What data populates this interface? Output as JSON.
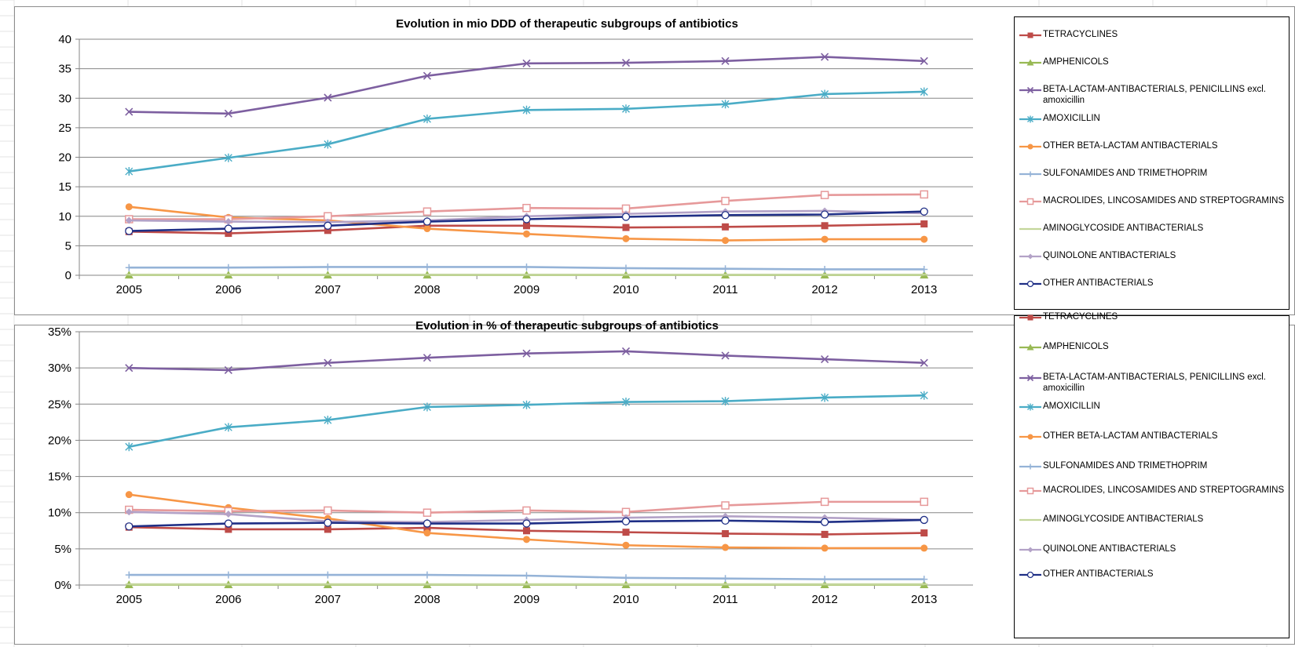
{
  "colors": {
    "TETRACYCLINES": "#be4b48",
    "AMPHENICOLS": "#98b954",
    "BETA_LACTAM": "#7d5fa0",
    "AMOXICILLIN": "#4aacc6",
    "OTHER_BETA_LACTAM": "#f79646",
    "SULFONAMIDES": "#95b3d7",
    "MACROLIDES": "#e6999a",
    "AMINOGLYCOSIDE": "#c3d69b",
    "QUINOLONE": "#b3a2c7",
    "OTHER": "#1f2f86"
  },
  "chart_data": [
    {
      "type": "line",
      "title": "Evolution in mio DDD of therapeutic subgroups of antibiotics",
      "x": [
        "2005",
        "2006",
        "2007",
        "2008",
        "2009",
        "2010",
        "2011",
        "2012",
        "2013"
      ],
      "ylim": [
        0,
        40
      ],
      "yticks": [
        "0",
        "5",
        "10",
        "15",
        "20",
        "25",
        "30",
        "35",
        "40"
      ],
      "ytick_values": [
        0,
        5,
        10,
        15,
        20,
        25,
        30,
        35,
        40
      ],
      "grid": true,
      "legend_position": "right",
      "series": [
        {
          "name": "TETRACYCLINES",
          "key": "TETRACYCLINES",
          "marker": "square",
          "values": [
            7.4,
            7.1,
            7.6,
            8.4,
            8.4,
            8.1,
            8.2,
            8.4,
            8.7
          ]
        },
        {
          "name": "AMPHENICOLS",
          "key": "AMPHENICOLS",
          "marker": "triangle",
          "values": [
            0.05,
            0.05,
            0.05,
            0.05,
            0.05,
            0.05,
            0.05,
            0.05,
            0.05
          ]
        },
        {
          "name": "BETA-LACTAM-ANTIBACTERIALS, PENICILLINS excl. amoxicillin",
          "key": "BETA_LACTAM",
          "marker": "x",
          "values": [
            27.7,
            27.4,
            30.1,
            33.8,
            35.9,
            36.0,
            36.3,
            37.0,
            36.3
          ]
        },
        {
          "name": "AMOXICILLIN",
          "key": "AMOXICILLIN",
          "marker": "star",
          "values": [
            17.6,
            19.9,
            22.2,
            26.5,
            28.0,
            28.2,
            29.0,
            30.7,
            31.1
          ]
        },
        {
          "name": "OTHER BETA-LACTAM ANTIBACTERIALS",
          "key": "OTHER_BETA_LACTAM",
          "marker": "circle",
          "values": [
            11.6,
            9.8,
            9.3,
            7.9,
            7.0,
            6.2,
            5.9,
            6.1,
            6.1
          ]
        },
        {
          "name": "SULFONAMIDES AND TRIMETHOPRIM",
          "key": "SULFONAMIDES",
          "marker": "plus",
          "values": [
            1.3,
            1.3,
            1.4,
            1.4,
            1.4,
            1.2,
            1.1,
            1.0,
            1.0
          ]
        },
        {
          "name": "MACROLIDES, LINCOSAMIDES AND STREPTOGRAMINS",
          "key": "MACROLIDES",
          "marker": "opensquare",
          "values": [
            9.5,
            9.5,
            10.0,
            10.8,
            11.4,
            11.3,
            12.6,
            13.6,
            13.7
          ]
        },
        {
          "name": "AMINOGLYCOSIDE ANTIBACTERIALS",
          "key": "AMINOGLYCOSIDE",
          "marker": "dash",
          "values": [
            0.1,
            0.1,
            0.1,
            0.1,
            0.1,
            0.1,
            0.1,
            0.1,
            0.1
          ]
        },
        {
          "name": "QUINOLONE ANTIBACTERIALS",
          "key": "QUINOLONE",
          "marker": "diamond",
          "values": [
            9.3,
            9.1,
            9.0,
            9.3,
            10.0,
            10.4,
            10.8,
            10.9,
            10.5
          ]
        },
        {
          "name": "OTHER ANTIBACTERIALS",
          "key": "OTHER",
          "marker": "opencircle",
          "values": [
            7.5,
            7.9,
            8.4,
            9.1,
            9.5,
            9.9,
            10.2,
            10.3,
            10.8
          ]
        }
      ]
    },
    {
      "type": "line",
      "title": "Evolution in % of therapeutic subgroups of antibiotics",
      "x": [
        "2005",
        "2006",
        "2007",
        "2008",
        "2009",
        "2010",
        "2011",
        "2012",
        "2013"
      ],
      "ylim": [
        0,
        35
      ],
      "yticks": [
        "0%",
        "5%",
        "10%",
        "15%",
        "20%",
        "25%",
        "30%",
        "35%"
      ],
      "ytick_values": [
        0,
        5,
        10,
        15,
        20,
        25,
        30,
        35
      ],
      "grid": true,
      "legend_position": "right",
      "series": [
        {
          "name": "TETRACYCLINES",
          "key": "TETRACYCLINES",
          "marker": "square",
          "values": [
            8.0,
            7.7,
            7.7,
            7.9,
            7.5,
            7.3,
            7.1,
            7.0,
            7.2
          ]
        },
        {
          "name": "AMPHENICOLS",
          "key": "AMPHENICOLS",
          "marker": "triangle",
          "values": [
            0.05,
            0.05,
            0.05,
            0.05,
            0.05,
            0.05,
            0.05,
            0.05,
            0.05
          ]
        },
        {
          "name": "BETA-LACTAM-ANTIBACTERIALS, PENICILLINS excl. amoxicillin",
          "key": "BETA_LACTAM",
          "marker": "x",
          "values": [
            30.0,
            29.7,
            30.7,
            31.4,
            32.0,
            32.3,
            31.7,
            31.2,
            30.7
          ]
        },
        {
          "name": "AMOXICILLIN",
          "key": "AMOXICILLIN",
          "marker": "star",
          "values": [
            19.1,
            21.8,
            22.8,
            24.6,
            24.9,
            25.3,
            25.4,
            25.9,
            26.2
          ]
        },
        {
          "name": "OTHER BETA-LACTAM ANTIBACTERIALS",
          "key": "OTHER_BETA_LACTAM",
          "marker": "circle",
          "values": [
            12.5,
            10.7,
            9.2,
            7.2,
            6.3,
            5.5,
            5.2,
            5.1,
            5.1
          ]
        },
        {
          "name": "SULFONAMIDES AND TRIMETHOPRIM",
          "key": "SULFONAMIDES",
          "marker": "plus",
          "values": [
            1.4,
            1.4,
            1.4,
            1.4,
            1.3,
            1.0,
            0.9,
            0.8,
            0.8
          ]
        },
        {
          "name": "MACROLIDES, LINCOSAMIDES AND STREPTOGRAMINS",
          "key": "MACROLIDES",
          "marker": "opensquare",
          "values": [
            10.4,
            10.2,
            10.3,
            10.0,
            10.3,
            10.1,
            11.0,
            11.5,
            11.5
          ]
        },
        {
          "name": "AMINOGLYCOSIDE ANTIBACTERIALS",
          "key": "AMINOGLYCOSIDE",
          "marker": "dash",
          "values": [
            0.1,
            0.1,
            0.1,
            0.1,
            0.1,
            0.1,
            0.1,
            0.1,
            0.1
          ]
        },
        {
          "name": "QUINOLONE ANTIBACTERIALS",
          "key": "QUINOLONE",
          "marker": "diamond",
          "values": [
            10.1,
            9.8,
            8.8,
            8.7,
            9.0,
            9.3,
            9.5,
            9.3,
            9.0
          ]
        },
        {
          "name": "OTHER ANTIBACTERIALS",
          "key": "OTHER",
          "marker": "opencircle",
          "values": [
            8.1,
            8.5,
            8.6,
            8.5,
            8.5,
            8.8,
            8.9,
            8.7,
            9.0
          ]
        }
      ]
    }
  ]
}
